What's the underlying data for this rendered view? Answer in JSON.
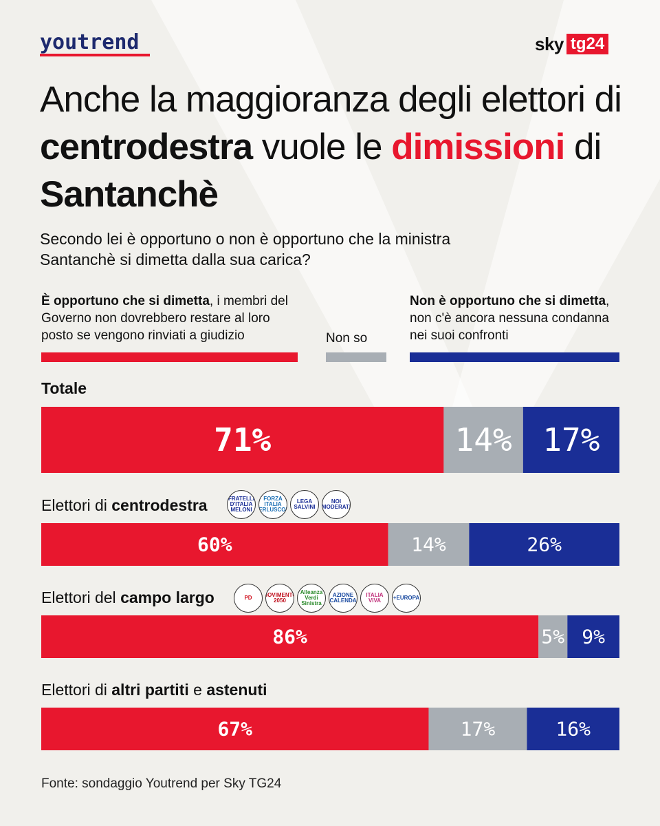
{
  "brand": {
    "left_logo": "youtrend",
    "right_logo_sky": "sky",
    "right_logo_tg": "tg24"
  },
  "headline": {
    "part1": "Anche la maggioranza degli elettori di ",
    "bold1": "centrodestra",
    "part2": " vuole le ",
    "red": "dimissioni",
    "part3": " di ",
    "bold2": "Santanchè"
  },
  "subtitle": "Secondo lei è opportuno o non è opportuno che la ministra Santanchè si dimetta dalla sua carica?",
  "legend": {
    "red_bold": "È opportuno che si dimetta",
    "red_rest": ", i membri del Governo non dovrebbero restare al loro posto se vengono rinviati a giudizio",
    "grey": "Non so",
    "blue_bold": "Non è opportuno che si dimetta",
    "blue_rest": ", non c'è ancora nessuna condanna nei suoi confronti"
  },
  "categories": {
    "c0": {
      "plain": "",
      "bold": "Totale",
      "rest": ""
    },
    "c1": {
      "plain": "Elettori di ",
      "bold": "centrodestra",
      "rest": ""
    },
    "c2": {
      "plain": "Elettori del ",
      "bold": "campo largo",
      "rest": ""
    },
    "c3": {
      "plain": "Elettori di ",
      "bold": "altri partiti",
      "mid": " e ",
      "bold2": "astenuti"
    }
  },
  "party_logos": {
    "centrodestra": [
      "FRATELLI D'ITALIA MELONI",
      "FORZA ITALIA BERLUSCONI",
      "LEGA SALVINI",
      "NOI MODERATI"
    ],
    "campo_largo": [
      "PD",
      "MOVIMENTO 2050",
      "Alleanza Verdi Sinistra",
      "AZIONE CALENDA",
      "ITALIA VIVA",
      "+EUROPA"
    ]
  },
  "chart_data": {
    "type": "bar",
    "stacked": true,
    "orientation": "horizontal",
    "categories": [
      "Totale",
      "Elettori di centrodestra",
      "Elettori del campo largo",
      "Elettori di altri partiti e astenuti"
    ],
    "series": [
      {
        "name": "È opportuno che si dimetta",
        "color": "#e8172e",
        "values": [
          71,
          60,
          86,
          67
        ],
        "labels": [
          "71%",
          "60%",
          "86%",
          "67%"
        ]
      },
      {
        "name": "Non so",
        "color": "#a8aeb4",
        "values": [
          14,
          14,
          5,
          17
        ],
        "labels": [
          "14%",
          "14%",
          "5%",
          "17%"
        ]
      },
      {
        "name": "Non è opportuno che si dimetta",
        "color": "#1a2e96",
        "values": [
          17,
          26,
          9,
          16
        ],
        "labels": [
          "17%",
          "26%",
          "9%",
          "16%"
        ]
      }
    ]
  },
  "source": "Fonte: sondaggio Youtrend per Sky TG24"
}
